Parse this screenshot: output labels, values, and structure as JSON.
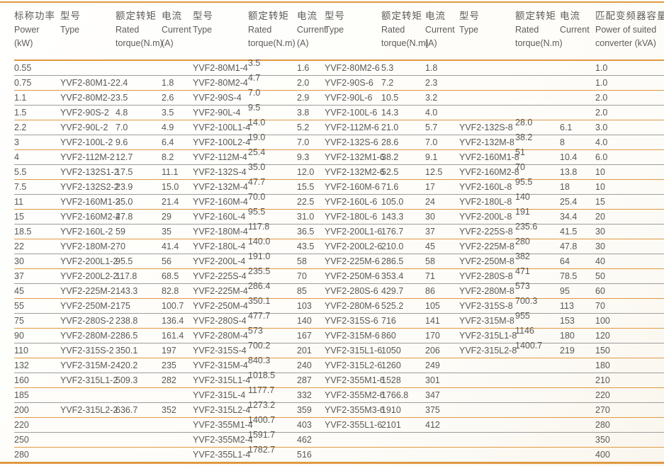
{
  "colors": {
    "accent_orange": "#E09943",
    "grid_gray": "#9D9D9D",
    "text": "#595755"
  },
  "table": {
    "headers": [
      {
        "zh": "标称功率",
        "en": "Power",
        "unit": "(kW)"
      },
      {
        "zh": "型号",
        "en": "Type",
        "unit": ""
      },
      {
        "zh": "额定转矩",
        "en": "Rated",
        "unit": "torque(N.m)"
      },
      {
        "zh": "电流",
        "en": "Current",
        "unit": "(A)"
      },
      {
        "zh": "型号",
        "en": "Type",
        "unit": ""
      },
      {
        "zh": "额定转矩",
        "en": "Rated",
        "unit": "torque(N.m)"
      },
      {
        "zh": "电流",
        "en": "Current",
        "unit": "(A)"
      },
      {
        "zh": "型号",
        "en": "Type",
        "unit": ""
      },
      {
        "zh": "额定转矩",
        "en": "Rated",
        "unit": "torque(N.m)"
      },
      {
        "zh": "电流",
        "en": "Current",
        "unit": "(A)"
      },
      {
        "zh": "型号",
        "en": "Type",
        "unit": ""
      },
      {
        "zh": "额定转矩",
        "en": "Rated",
        "unit": "torque(N.m)"
      },
      {
        "zh": "电流",
        "en": "Current",
        "unit": ""
      },
      {
        "zh": "匹配变频器容量",
        "en": "Power of suited",
        "unit": "converter (kVA)"
      }
    ],
    "raised_columns": [
      5,
      11
    ],
    "rows": [
      [
        "0.55",
        "",
        "",
        "",
        "YVF2-80M1-4",
        "3.5",
        "1.6",
        "YVF2-80M2-6",
        "5.3",
        "1.8",
        "",
        "",
        "",
        "1.0"
      ],
      [
        "0.75",
        "YVF2-80M1-2",
        "2.4",
        "1.8",
        "YVF2-80M2-4",
        "4.7",
        "2.0",
        "YVF2-90S-6",
        "7.2",
        "2.3",
        "",
        "",
        "",
        "1.0"
      ],
      [
        "1.1",
        "YVF2-80M2-2",
        "3.5",
        "2.6",
        "YVF2-90S-4",
        "7.0",
        "2.9",
        "YVF2-90L-6",
        "10.5",
        "3.2",
        "",
        "",
        "",
        "2.0"
      ],
      [
        "1.5",
        "YVF2-90S-2",
        "4.8",
        "3.5",
        "YVF2-90L-4",
        "9.5",
        "3.8",
        "YVF2-100L-6",
        "14.3",
        "4.0",
        "",
        "",
        "",
        "2.0"
      ],
      [
        "2.2",
        "YVF2-90L-2",
        "7.0",
        "4.9",
        "YVF2-100L1-4",
        "14.0",
        "5.2",
        "YVF2-112M-6",
        "21.0",
        "5.7",
        "YVF2-132S-8",
        "28.0",
        "6.1",
        "3.0"
      ],
      [
        "3",
        "YVF2-100L-2",
        "9.6",
        "6.4",
        "YVF2-100L2-4",
        "19.0",
        "7.0",
        "YVF2-132S-6",
        "28.6",
        "7.0",
        "YVF2-132M-8",
        "38.2",
        "8",
        "4.0"
      ],
      [
        "4",
        "YVF2-112M-2",
        "12.7",
        "8.2",
        "YVF2-112M-4",
        "25.4",
        "9.3",
        "YVF2-132M1-6",
        "38.2",
        "9.1",
        "YVF2-160M1-8",
        "51",
        "10.4",
        "6.0"
      ],
      [
        "5.5",
        "YVF2-132S1-2",
        "17.5",
        "11.1",
        "YVF2-132S-4",
        "35.0",
        "12.0",
        "YVF2-132M2-6",
        "52.5",
        "12.5",
        "YVF2-160M2-8",
        "70",
        "13.8",
        "10"
      ],
      [
        "7.5",
        "YVF2-132S2-2",
        "23.9",
        "15.0",
        "YVF2-132M-4",
        "47.7",
        "15.5",
        "YVF2-160M-6",
        "71.6",
        "17",
        "YVF2-160L-8",
        "95.5",
        "18",
        "10"
      ],
      [
        "11",
        "YVF2-160M1-2",
        "35.0",
        "21.4",
        "YVF2-160M-4",
        "70.0",
        "22.5",
        "YVF2-160L-6",
        "105.0",
        "24",
        "YVF2-180L-8",
        "140",
        "25.4",
        "15"
      ],
      [
        "15",
        "YVF2-160M2-2",
        "47.8",
        "29",
        "YVF2-160L-4",
        "95.5",
        "31.0",
        "YVF2-180L-6",
        "143.3",
        "30",
        "YVF2-200L-8",
        "191",
        "34.4",
        "20"
      ],
      [
        "18.5",
        "YVF2-160L-2",
        "59",
        "35",
        "YVF2-180M-4",
        "117.8",
        "36.5",
        "YVF2-200L1-6",
        "176.7",
        "37",
        "YVF2-225S-8",
        "235.6",
        "41.5",
        "30"
      ],
      [
        "22",
        "YVF2-180M-2",
        "70",
        "41.4",
        "YVF2-180L-4",
        "140.0",
        "43.5",
        "YVF2-200L2-6",
        "210.0",
        "45",
        "YVF2-225M-8",
        "280",
        "47.8",
        "30"
      ],
      [
        "30",
        "YVF2-200L1-2",
        "95.5",
        "56",
        "YVF2-200L-4",
        "191.0",
        "58",
        "YVF2-225M-6",
        "286.5",
        "58",
        "YVF2-250M-8",
        "382",
        "64",
        "40"
      ],
      [
        "37",
        "YVF2-200L2-2",
        "117.8",
        "68.5",
        "YVF2-225S-4",
        "235.5",
        "70",
        "YVF2-250M-6",
        "353.4",
        "71",
        "YVF2-280S-8",
        "471",
        "78.5",
        "50"
      ],
      [
        "45",
        "YVF2-225M-2",
        "143.3",
        "82.8",
        "YVF2-225M-4",
        "286.4",
        "85",
        "YVF2-280S-6",
        "429.7",
        "86",
        "YVF2-280M-8",
        "573",
        "95",
        "60"
      ],
      [
        "55",
        "YVF2-250M-2",
        "175",
        "100.7",
        "YVF2-250M-4",
        "350.1",
        "103",
        "YVF2-280M-6",
        "525.2",
        "105",
        "YVF2-315S-8",
        "700.3",
        "113",
        "70"
      ],
      [
        "75",
        "YVF2-280S-2",
        "238.8",
        "136.4",
        "YVF2-280S-4",
        "477.7",
        "140",
        "YVF2-315S-6",
        "716",
        "141",
        "YVF2-315M-8",
        "955",
        "153",
        "100"
      ],
      [
        "90",
        "YVF2-280M-2",
        "286.5",
        "161.4",
        "YVF2-280M-4",
        "573",
        "167",
        "YVF2-315M-6",
        "860",
        "170",
        "YVF2-315L1-8",
        "1146",
        "180",
        "120"
      ],
      [
        "110",
        "YVF2-315S-2",
        "350.1",
        "197",
        "YVF2-315S-4",
        "700.2",
        "201",
        "YVF2-315L1-6",
        "1050",
        "206",
        "YVF2-315L2-8",
        "1400.7",
        "219",
        "150"
      ],
      [
        "132",
        "YVF2-315M-2",
        "420.2",
        "235",
        "YVF2-315M-4",
        "840.3",
        "240",
        "YVF2-315L2-6",
        "1260",
        "249",
        "",
        "",
        "",
        "180"
      ],
      [
        "160",
        "YVF2-315L1-2",
        "509.3",
        "282",
        "YVF2-315L1-4",
        "1018.5",
        "287",
        "YVF2-355M1-6",
        "1528",
        "301",
        "",
        "",
        "",
        "210"
      ],
      [
        "185",
        "",
        "",
        "",
        "YVF2-315L-4",
        "1177.7",
        "332",
        "YVF2-355M2-6",
        "1766.8",
        "347",
        "",
        "",
        "",
        "220"
      ],
      [
        "200",
        "YVF2-315L2-2",
        "636.7",
        "352",
        "YVF2-315L2-4",
        "1273.2",
        "359",
        "YVF2-355M3-6",
        "1910",
        "375",
        "",
        "",
        "",
        "270"
      ],
      [
        "220",
        "",
        "",
        "",
        "YVF2-355M1-4",
        "1400.7",
        "403",
        "YVF2-355L1-6",
        "2101",
        "412",
        "",
        "",
        "",
        "280"
      ],
      [
        "250",
        "",
        "",
        "",
        "YVF2-355M2-4",
        "1591.7",
        "462",
        "",
        "",
        "",
        "",
        "",
        "",
        "350"
      ],
      [
        "280",
        "",
        "",
        "",
        "YVF2-355L1-4",
        "1782.7",
        "516",
        "",
        "",
        "",
        "",
        "",
        "",
        "400"
      ]
    ]
  }
}
